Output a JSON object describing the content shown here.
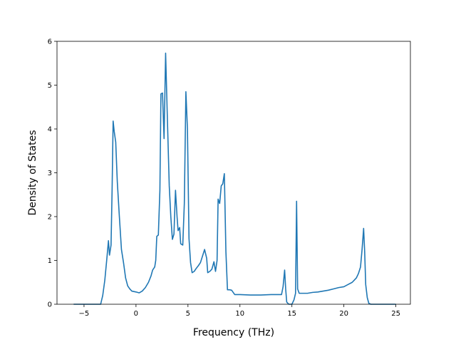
{
  "chart_data": {
    "type": "line",
    "title": "",
    "xlabel": "Frequency (THz)",
    "ylabel": "Density of States",
    "xlim": [
      -7.6,
      26.4
    ],
    "ylim": [
      0,
      6
    ],
    "xticks": [
      -5,
      0,
      5,
      10,
      15,
      20,
      25
    ],
    "yticks": [
      0,
      1,
      2,
      3,
      4,
      5,
      6
    ],
    "grid": false,
    "legend": "none",
    "series": [
      {
        "color": "#1f77b4",
        "points": [
          [
            -6,
            0
          ],
          [
            -5,
            0
          ],
          [
            -4,
            0
          ],
          [
            -3.4,
            0
          ],
          [
            -3.2,
            0.2
          ],
          [
            -3.0,
            0.55
          ],
          [
            -2.8,
            1.05
          ],
          [
            -2.65,
            1.45
          ],
          [
            -2.55,
            1.12
          ],
          [
            -2.4,
            1.35
          ],
          [
            -2.3,
            2.6
          ],
          [
            -2.2,
            4.18
          ],
          [
            -2.1,
            3.95
          ],
          [
            -1.95,
            3.7
          ],
          [
            -1.8,
            2.8
          ],
          [
            -1.6,
            2.0
          ],
          [
            -1.4,
            1.25
          ],
          [
            -1.2,
            0.95
          ],
          [
            -1.0,
            0.6
          ],
          [
            -0.8,
            0.42
          ],
          [
            -0.6,
            0.35
          ],
          [
            -0.4,
            0.3
          ],
          [
            0,
            0.28
          ],
          [
            0.3,
            0.26
          ],
          [
            0.6,
            0.3
          ],
          [
            0.9,
            0.38
          ],
          [
            1.2,
            0.5
          ],
          [
            1.45,
            0.65
          ],
          [
            1.6,
            0.78
          ],
          [
            1.8,
            0.85
          ],
          [
            1.9,
            1.0
          ],
          [
            2.0,
            1.55
          ],
          [
            2.15,
            1.58
          ],
          [
            2.3,
            2.6
          ],
          [
            2.4,
            4.8
          ],
          [
            2.55,
            4.82
          ],
          [
            2.7,
            3.78
          ],
          [
            2.85,
            5.73
          ],
          [
            3.0,
            4.4
          ],
          [
            3.2,
            2.7
          ],
          [
            3.35,
            2.0
          ],
          [
            3.5,
            1.48
          ],
          [
            3.65,
            1.6
          ],
          [
            3.8,
            2.6
          ],
          [
            3.95,
            2.0
          ],
          [
            4.05,
            1.68
          ],
          [
            4.2,
            1.75
          ],
          [
            4.3,
            1.38
          ],
          [
            4.5,
            1.35
          ],
          [
            4.65,
            2.3
          ],
          [
            4.8,
            4.85
          ],
          [
            4.95,
            4.0
          ],
          [
            5.1,
            1.5
          ],
          [
            5.25,
            0.95
          ],
          [
            5.4,
            0.72
          ],
          [
            5.6,
            0.75
          ],
          [
            5.8,
            0.82
          ],
          [
            6.0,
            0.88
          ],
          [
            6.2,
            0.95
          ],
          [
            6.4,
            1.1
          ],
          [
            6.6,
            1.25
          ],
          [
            6.8,
            1.05
          ],
          [
            6.9,
            0.72
          ],
          [
            7.1,
            0.75
          ],
          [
            7.3,
            0.8
          ],
          [
            7.5,
            0.97
          ],
          [
            7.65,
            0.75
          ],
          [
            7.8,
            1.0
          ],
          [
            7.9,
            2.4
          ],
          [
            8.05,
            2.3
          ],
          [
            8.2,
            2.7
          ],
          [
            8.35,
            2.75
          ],
          [
            8.5,
            2.98
          ],
          [
            8.65,
            1.2
          ],
          [
            8.8,
            0.33
          ],
          [
            9.0,
            0.33
          ],
          [
            9.2,
            0.32
          ],
          [
            9.5,
            0.22
          ],
          [
            10,
            0.22
          ],
          [
            11,
            0.21
          ],
          [
            12,
            0.21
          ],
          [
            13,
            0.22
          ],
          [
            13.5,
            0.22
          ],
          [
            14.0,
            0.22
          ],
          [
            14.15,
            0.4
          ],
          [
            14.3,
            0.78
          ],
          [
            14.4,
            0.35
          ],
          [
            14.5,
            0.05
          ],
          [
            14.7,
            0
          ],
          [
            15.0,
            0
          ],
          [
            15.2,
            0.1
          ],
          [
            15.35,
            0.25
          ],
          [
            15.45,
            2.35
          ],
          [
            15.55,
            0.35
          ],
          [
            15.7,
            0.25
          ],
          [
            16.0,
            0.25
          ],
          [
            16.5,
            0.25
          ],
          [
            17.0,
            0.27
          ],
          [
            17.5,
            0.28
          ],
          [
            18.0,
            0.3
          ],
          [
            18.5,
            0.32
          ],
          [
            19.0,
            0.35
          ],
          [
            19.5,
            0.38
          ],
          [
            20.0,
            0.4
          ],
          [
            20.4,
            0.45
          ],
          [
            20.8,
            0.5
          ],
          [
            21.0,
            0.55
          ],
          [
            21.2,
            0.6
          ],
          [
            21.4,
            0.7
          ],
          [
            21.6,
            0.85
          ],
          [
            21.75,
            1.25
          ],
          [
            21.9,
            1.73
          ],
          [
            22.0,
            1.2
          ],
          [
            22.1,
            0.45
          ],
          [
            22.25,
            0.15
          ],
          [
            22.4,
            0.02
          ],
          [
            22.6,
            0
          ],
          [
            23,
            0
          ],
          [
            24,
            0
          ],
          [
            25,
            0
          ]
        ]
      }
    ]
  }
}
